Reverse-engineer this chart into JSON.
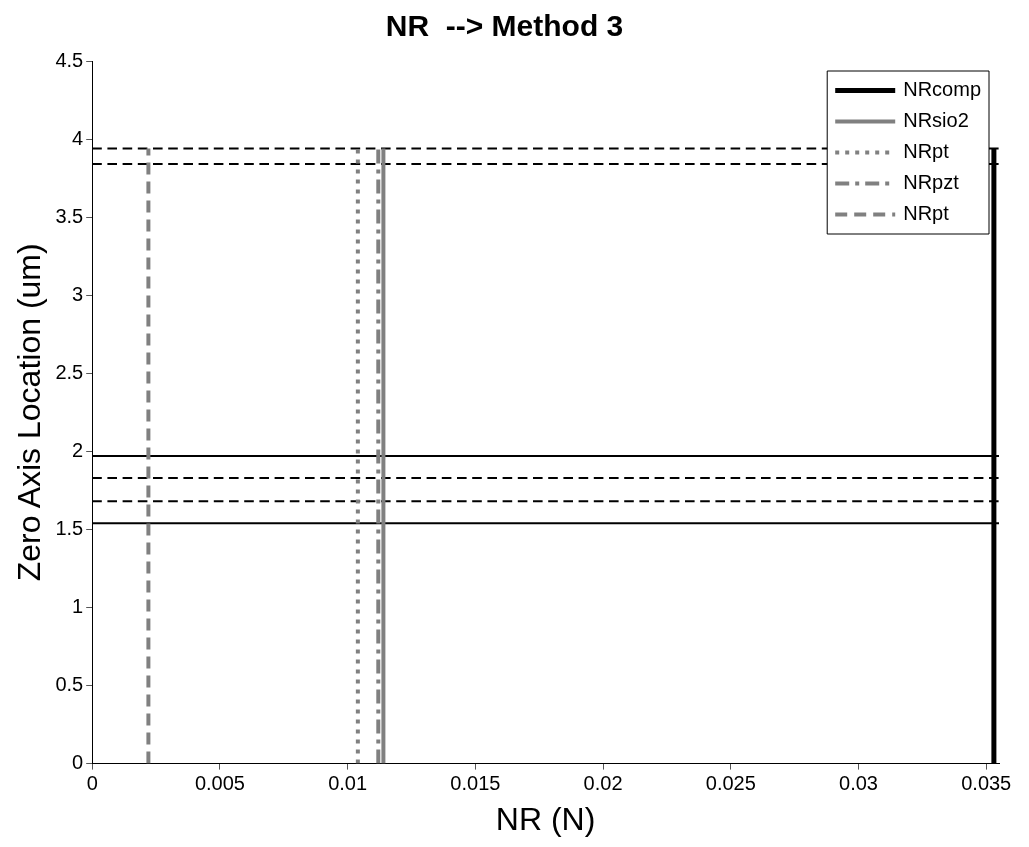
{
  "chart_data": {
    "type": "line",
    "title": "NR  --> Method 3",
    "xlabel": "NR (N)",
    "ylabel": "Zero Axis Location (um)",
    "xlim": [
      0,
      0.0355
    ],
    "xticks": [
      0,
      0.005,
      0.01,
      0.015,
      0.02,
      0.025,
      0.03,
      0.035
    ],
    "ylim": [
      0,
      4.5
    ],
    "yticks": [
      0,
      0.5,
      1,
      1.5,
      2,
      2.5,
      3,
      3.5,
      4,
      4.5
    ],
    "grid": false,
    "legend": "top right",
    "marker": "none",
    "series": [
      {
        "name": "NRcomp",
        "color": "#000000",
        "line_style": "solid",
        "x": [
          0.0353,
          0.0353
        ],
        "values": [
          0,
          3.94
        ]
      },
      {
        "name": "NRsio2",
        "color": "#808080",
        "line_style": "solid",
        "x": [
          0.0114,
          0.0114
        ],
        "values": [
          0,
          3.94
        ]
      },
      {
        "name": "NRpt",
        "color": "#808080",
        "line_style": "dotted",
        "x": [
          0.0104,
          0.0104
        ],
        "values": [
          0,
          3.94
        ]
      },
      {
        "name": "NRpzt",
        "color": "#808080",
        "line_style": "dashdot",
        "x": [
          0.0112,
          0.0112
        ],
        "values": [
          0,
          3.94
        ]
      },
      {
        "name": "NRpt",
        "color": "#808080",
        "line_style": "dashed",
        "x": [
          0.0022,
          0.0022
        ],
        "values": [
          0,
          3.94
        ]
      }
    ],
    "ref_lines": [
      {
        "axis": "y",
        "value": 3.94,
        "color": "#000000",
        "line_style": "dashed"
      },
      {
        "axis": "y",
        "value": 3.84,
        "color": "#000000",
        "line_style": "dashed"
      },
      {
        "axis": "y",
        "value": 1.97,
        "color": "#000000",
        "line_style": "solid"
      },
      {
        "axis": "y",
        "value": 1.83,
        "color": "#000000",
        "line_style": "dashed"
      },
      {
        "axis": "y",
        "value": 1.68,
        "color": "#000000",
        "line_style": "dashed"
      },
      {
        "axis": "y",
        "value": 1.54,
        "color": "#000000",
        "line_style": "solid"
      }
    ]
  }
}
